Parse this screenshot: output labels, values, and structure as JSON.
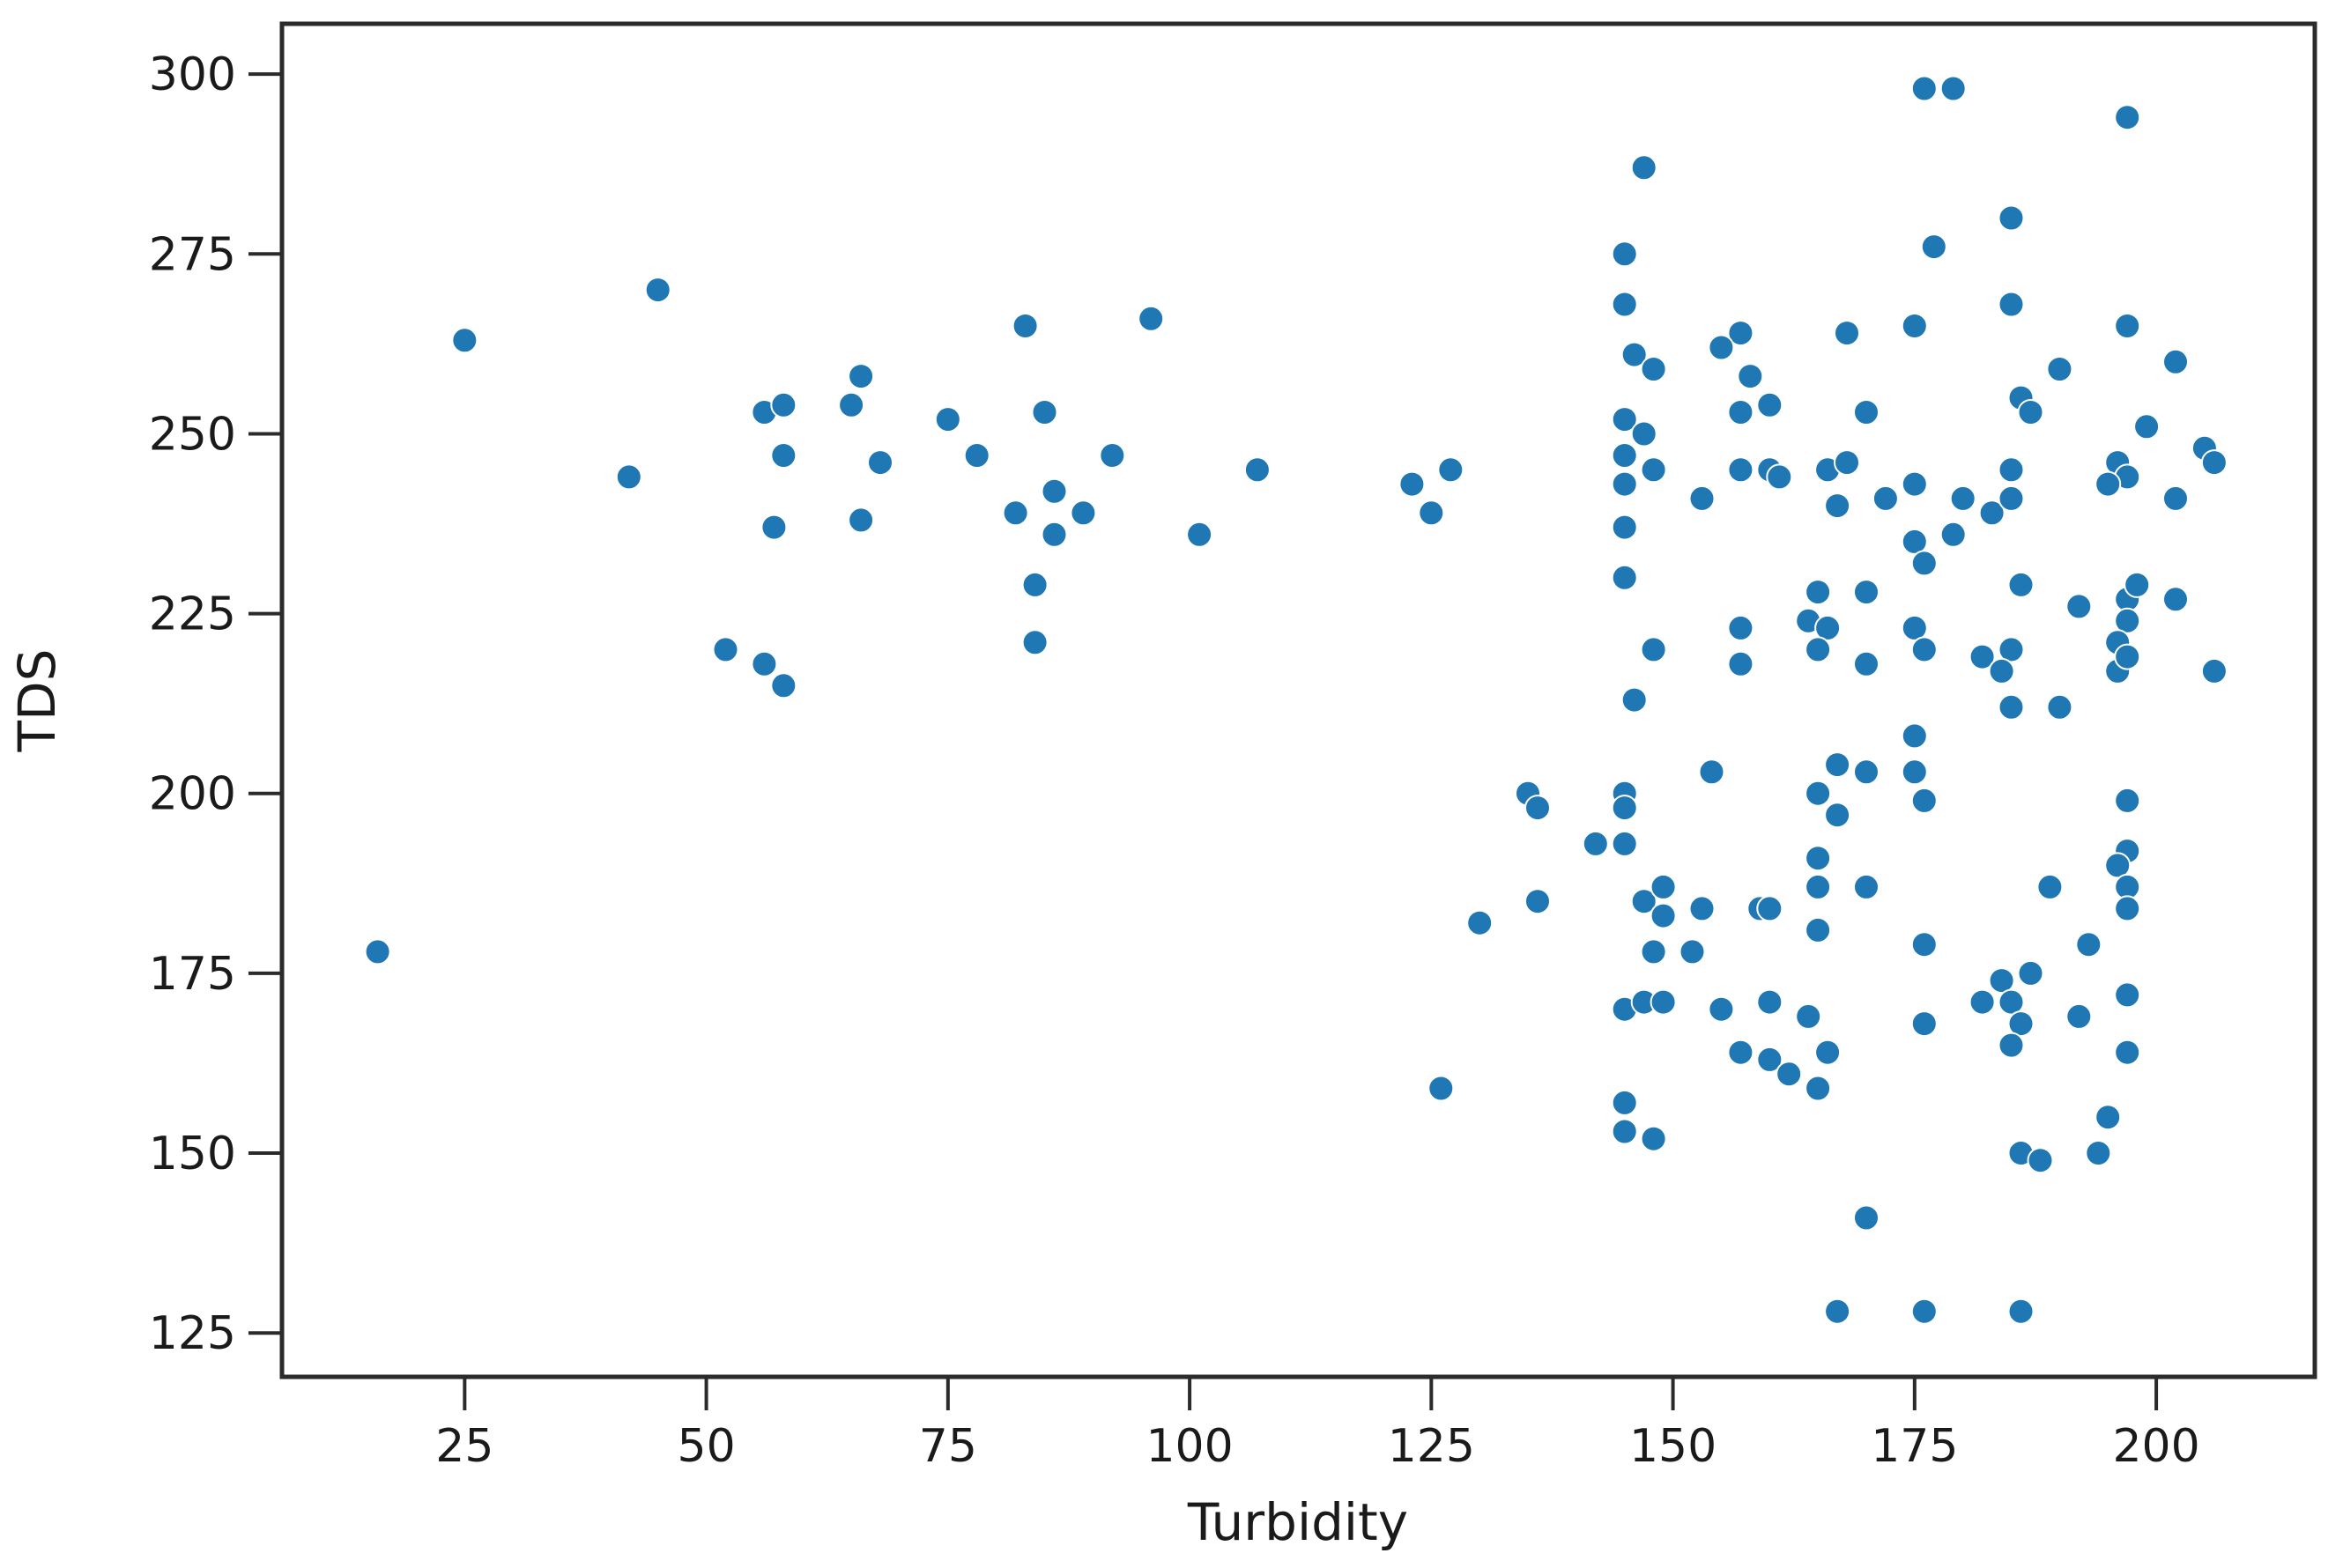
{
  "figure": {
    "background": "#ffffff"
  },
  "chart_data": {
    "type": "scatter",
    "title": "",
    "xlabel": "Turbidity",
    "ylabel": "TDS",
    "x_ticks": [
      25,
      50,
      75,
      100,
      125,
      150,
      175,
      200
    ],
    "y_ticks": [
      125,
      150,
      175,
      200,
      225,
      250,
      275,
      300
    ],
    "xlim": [
      6.1,
      216.4
    ],
    "ylim": [
      118.9,
      307.0
    ],
    "grid": false,
    "legend": "none",
    "marker_color": "#1f77b4",
    "marker_edge_color": "#ffffff",
    "axis_color": "#2b2b2b",
    "text_color": "#1a1a1a",
    "n_points": 182,
    "points": [
      [
        16,
        178
      ],
      [
        25,
        263
      ],
      [
        42,
        244
      ],
      [
        45,
        270
      ],
      [
        52,
        220
      ],
      [
        56,
        218
      ],
      [
        58,
        215
      ],
      [
        56,
        253
      ],
      [
        58,
        254
      ],
      [
        58,
        247
      ],
      [
        65,
        254
      ],
      [
        66,
        258
      ],
      [
        68,
        246
      ],
      [
        66,
        238
      ],
      [
        57,
        237
      ],
      [
        75,
        252
      ],
      [
        78,
        247
      ],
      [
        83,
        265
      ],
      [
        85,
        253
      ],
      [
        96,
        266
      ],
      [
        92,
        247
      ],
      [
        107,
        245
      ],
      [
        86,
        242
      ],
      [
        82,
        239
      ],
      [
        89,
        239
      ],
      [
        86,
        236
      ],
      [
        101,
        236
      ],
      [
        84,
        229
      ],
      [
        84,
        221
      ],
      [
        123,
        243
      ],
      [
        127,
        245
      ],
      [
        125,
        239
      ],
      [
        126,
        159
      ],
      [
        130,
        182
      ],
      [
        135,
        200
      ],
      [
        136,
        198
      ],
      [
        136,
        185
      ],
      [
        142,
        193
      ],
      [
        145,
        193
      ],
      [
        145,
        200
      ],
      [
        145,
        198
      ],
      [
        147,
        287
      ],
      [
        145,
        275
      ],
      [
        145,
        268
      ],
      [
        146,
        261
      ],
      [
        148,
        259
      ],
      [
        145,
        252
      ],
      [
        147,
        250
      ],
      [
        145,
        247
      ],
      [
        148,
        245
      ],
      [
        145,
        243
      ],
      [
        145,
        237
      ],
      [
        145,
        230
      ],
      [
        148,
        220
      ],
      [
        146,
        213
      ],
      [
        145,
        170
      ],
      [
        147,
        171
      ],
      [
        149,
        171
      ],
      [
        147,
        185
      ],
      [
        149,
        183
      ],
      [
        149,
        187
      ],
      [
        145,
        157
      ],
      [
        145,
        153
      ],
      [
        148,
        152
      ],
      [
        148,
        178
      ],
      [
        152,
        178
      ],
      [
        176,
        298
      ],
      [
        179,
        298
      ],
      [
        177,
        276
      ],
      [
        185,
        280
      ],
      [
        175,
        265
      ],
      [
        168,
        264
      ],
      [
        157,
        264
      ],
      [
        155,
        262
      ],
      [
        158,
        258
      ],
      [
        160,
        254
      ],
      [
        157,
        253
      ],
      [
        170,
        253
      ],
      [
        157,
        245
      ],
      [
        160,
        245
      ],
      [
        161,
        244
      ],
      [
        166,
        245
      ],
      [
        168,
        246
      ],
      [
        153,
        241
      ],
      [
        167,
        240
      ],
      [
        172,
        241
      ],
      [
        175,
        243
      ],
      [
        180,
        241
      ],
      [
        183,
        239
      ],
      [
        175,
        235
      ],
      [
        176,
        232
      ],
      [
        179,
        236
      ],
      [
        165,
        228
      ],
      [
        170,
        228
      ],
      [
        157,
        223
      ],
      [
        157,
        218
      ],
      [
        164,
        224
      ],
      [
        166,
        223
      ],
      [
        165,
        220
      ],
      [
        170,
        218
      ],
      [
        175,
        223
      ],
      [
        176,
        220
      ],
      [
        182,
        219
      ],
      [
        154,
        203
      ],
      [
        175,
        208
      ],
      [
        175,
        203
      ],
      [
        176,
        199
      ],
      [
        167,
        204
      ],
      [
        170,
        203
      ],
      [
        165,
        200
      ],
      [
        167,
        197
      ],
      [
        165,
        191
      ],
      [
        165,
        187
      ],
      [
        170,
        187
      ],
      [
        153,
        184
      ],
      [
        159,
        184
      ],
      [
        160,
        184
      ],
      [
        155,
        170
      ],
      [
        160,
        171
      ],
      [
        164,
        169
      ],
      [
        176,
        168
      ],
      [
        157,
        164
      ],
      [
        160,
        163
      ],
      [
        162,
        161
      ],
      [
        166,
        164
      ],
      [
        165,
        159
      ],
      [
        176,
        179
      ],
      [
        182,
        171
      ],
      [
        170,
        141
      ],
      [
        167,
        128
      ],
      [
        176,
        128
      ],
      [
        186,
        128
      ],
      [
        165,
        181
      ],
      [
        197,
        294
      ],
      [
        185,
        268
      ],
      [
        197,
        265
      ],
      [
        202,
        260
      ],
      [
        190,
        259
      ],
      [
        186,
        255
      ],
      [
        187,
        253
      ],
      [
        199,
        251
      ],
      [
        205,
        248
      ],
      [
        206,
        246
      ],
      [
        185,
        245
      ],
      [
        196,
        246
      ],
      [
        197,
        244
      ],
      [
        195,
        243
      ],
      [
        202,
        241
      ],
      [
        185,
        241
      ],
      [
        186,
        229
      ],
      [
        192,
        226
      ],
      [
        197,
        227
      ],
      [
        198,
        229
      ],
      [
        197,
        224
      ],
      [
        202,
        227
      ],
      [
        185,
        220
      ],
      [
        184,
        217
      ],
      [
        185,
        212
      ],
      [
        190,
        212
      ],
      [
        196,
        221
      ],
      [
        196,
        217
      ],
      [
        197,
        219
      ],
      [
        206,
        217
      ],
      [
        197,
        199
      ],
      [
        197,
        192
      ],
      [
        196,
        190
      ],
      [
        197,
        187
      ],
      [
        197,
        184
      ],
      [
        189,
        187
      ],
      [
        193,
        179
      ],
      [
        187,
        175
      ],
      [
        184,
        174
      ],
      [
        185,
        171
      ],
      [
        186,
        168
      ],
      [
        185,
        165
      ],
      [
        197,
        172
      ],
      [
        192,
        169
      ],
      [
        197,
        164
      ],
      [
        195,
        155
      ],
      [
        194,
        150
      ],
      [
        186,
        150
      ],
      [
        188,
        149
      ]
    ]
  }
}
